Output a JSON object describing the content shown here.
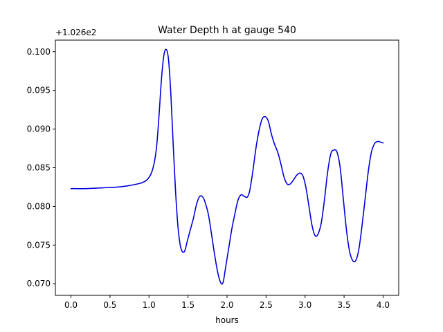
{
  "chart_data": {
    "type": "line",
    "title": "Water Depth h at gauge 540",
    "xlabel": "hours",
    "ylabel": "",
    "y_offset_label": "+1.026e2",
    "xlim": [
      -0.2,
      4.2
    ],
    "ylim": [
      0.0685,
      0.1015
    ],
    "x_ticks": [
      0.0,
      0.5,
      1.0,
      1.5,
      2.0,
      2.5,
      3.0,
      3.5,
      4.0
    ],
    "x_tick_labels": [
      "0.0",
      "0.5",
      "1.0",
      "1.5",
      "2.0",
      "2.5",
      "3.0",
      "3.5",
      "4.0"
    ],
    "y_ticks": [
      0.07,
      0.075,
      0.08,
      0.085,
      0.09,
      0.095,
      0.1
    ],
    "y_tick_labels": [
      "0.070",
      "0.075",
      "0.080",
      "0.085",
      "0.090",
      "0.095",
      "0.100"
    ],
    "grid": false,
    "legend": "none",
    "series": [
      {
        "color": "#0000dd",
        "x": [
          0.0,
          0.2,
          0.4,
          0.6,
          0.75,
          0.85,
          0.92,
          0.98,
          1.03,
          1.07,
          1.1,
          1.13,
          1.16,
          1.19,
          1.22,
          1.25,
          1.28,
          1.31,
          1.34,
          1.37,
          1.4,
          1.43,
          1.46,
          1.49,
          1.53,
          1.57,
          1.61,
          1.65,
          1.69,
          1.72,
          1.76,
          1.8,
          1.84,
          1.88,
          1.92,
          1.95,
          1.98,
          2.02,
          2.06,
          2.1,
          2.14,
          2.18,
          2.22,
          2.26,
          2.29,
          2.33,
          2.37,
          2.41,
          2.45,
          2.49,
          2.53,
          2.57,
          2.61,
          2.65,
          2.69,
          2.73,
          2.77,
          2.81,
          2.85,
          2.89,
          2.93,
          2.97,
          3.01,
          3.05,
          3.09,
          3.13,
          3.17,
          3.21,
          3.25,
          3.29,
          3.33,
          3.37,
          3.41,
          3.45,
          3.49,
          3.53,
          3.57,
          3.61,
          3.65,
          3.69,
          3.73,
          3.77,
          3.81,
          3.85,
          3.89,
          3.93,
          3.97,
          4.0
        ],
        "y": [
          0.0823,
          0.0823,
          0.0824,
          0.0825,
          0.0827,
          0.0829,
          0.0831,
          0.0835,
          0.0843,
          0.0858,
          0.088,
          0.092,
          0.0965,
          0.0995,
          0.1003,
          0.099,
          0.0945,
          0.088,
          0.082,
          0.0775,
          0.075,
          0.0741,
          0.0743,
          0.0755,
          0.077,
          0.0785,
          0.0803,
          0.0813,
          0.0812,
          0.0805,
          0.079,
          0.0765,
          0.0738,
          0.0715,
          0.0701,
          0.0702,
          0.072,
          0.0745,
          0.077,
          0.079,
          0.0808,
          0.0815,
          0.0813,
          0.0812,
          0.082,
          0.0845,
          0.0875,
          0.0898,
          0.0913,
          0.0916,
          0.091,
          0.0893,
          0.088,
          0.087,
          0.0855,
          0.0838,
          0.0829,
          0.0829,
          0.0834,
          0.084,
          0.0843,
          0.084,
          0.0825,
          0.08,
          0.0775,
          0.0762,
          0.0765,
          0.078,
          0.081,
          0.0845,
          0.0868,
          0.0873,
          0.087,
          0.085,
          0.081,
          0.077,
          0.0742,
          0.073,
          0.073,
          0.0745,
          0.0775,
          0.081,
          0.0845,
          0.087,
          0.0881,
          0.0884,
          0.0883,
          0.0882
        ]
      }
    ]
  }
}
